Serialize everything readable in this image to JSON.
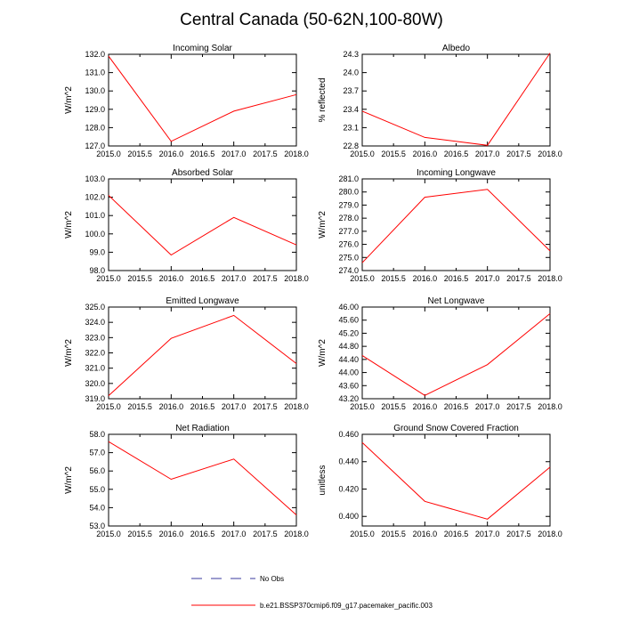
{
  "figure": {
    "title": "Central Canada (50-62N,100-80W)",
    "legend": [
      {
        "label": "No Obs",
        "style": "dashed",
        "color": "#3a3a9e"
      },
      {
        "label": "b.e21.BSSP370cmip6.f09_g17.pacemaker_pacific.003",
        "style": "solid",
        "color": "#ff0000"
      }
    ]
  },
  "chart_data": [
    {
      "id": "incoming-solar",
      "type": "line",
      "title": "Incoming Solar",
      "xlabel": "",
      "ylabel": "W/m^2",
      "x": [
        2015,
        2016,
        2017,
        2018
      ],
      "xlim": [
        2015,
        2018
      ],
      "xticks": [
        "2015.0",
        "2015.5",
        "2016.0",
        "2016.5",
        "2017.0",
        "2017.5",
        "2018.0"
      ],
      "ylim": [
        127.0,
        132.0
      ],
      "yticks": [
        "127.0",
        "128.0",
        "129.0",
        "130.0",
        "131.0",
        "132.0"
      ],
      "series": [
        {
          "name": "b.e21.BSSP370cmip6.f09_g17.pacemaker_pacific.003",
          "color": "#ff0000",
          "values": [
            131.9,
            127.25,
            128.9,
            129.8
          ]
        }
      ]
    },
    {
      "id": "albedo",
      "type": "line",
      "title": "Albedo",
      "xlabel": "",
      "ylabel": "% reflected",
      "x": [
        2015,
        2016,
        2017,
        2018
      ],
      "xlim": [
        2015,
        2018
      ],
      "xticks": [
        "2015.0",
        "2015.5",
        "2016.0",
        "2016.5",
        "2017.0",
        "2017.5",
        "2018.0"
      ],
      "ylim": [
        22.8,
        24.3
      ],
      "yticks": [
        "22.8",
        "23.1",
        "23.4",
        "23.7",
        "24.0",
        "24.3"
      ],
      "series": [
        {
          "name": "b.e21.BSSP370cmip6.f09_g17.pacemaker_pacific.003",
          "color": "#ff0000",
          "values": [
            23.37,
            22.94,
            22.81,
            24.32
          ]
        }
      ]
    },
    {
      "id": "absorbed-solar",
      "type": "line",
      "title": "Absorbed Solar",
      "xlabel": "",
      "ylabel": "W/m^2",
      "x": [
        2015,
        2016,
        2017,
        2018
      ],
      "xlim": [
        2015,
        2018
      ],
      "xticks": [
        "2015.0",
        "2015.5",
        "2016.0",
        "2016.5",
        "2017.0",
        "2017.5",
        "2018.0"
      ],
      "ylim": [
        98.0,
        103.0
      ],
      "yticks": [
        "98.0",
        "99.0",
        "100.0",
        "101.0",
        "102.0",
        "103.0"
      ],
      "series": [
        {
          "name": "b.e21.BSSP370cmip6.f09_g17.pacemaker_pacific.003",
          "color": "#ff0000",
          "values": [
            102.1,
            98.85,
            100.9,
            99.4
          ]
        }
      ]
    },
    {
      "id": "incoming-longwave",
      "type": "line",
      "title": "Incoming Longwave",
      "xlabel": "",
      "ylabel": "W/m^2",
      "x": [
        2015,
        2016,
        2017,
        2018
      ],
      "xlim": [
        2015,
        2018
      ],
      "xticks": [
        "2015.0",
        "2015.5",
        "2016.0",
        "2016.5",
        "2017.0",
        "2017.5",
        "2018.0"
      ],
      "ylim": [
        274.0,
        281.0
      ],
      "yticks": [
        "274.0",
        "275.0",
        "276.0",
        "277.0",
        "278.0",
        "279.0",
        "280.0",
        "281.0"
      ],
      "series": [
        {
          "name": "b.e21.BSSP370cmip6.f09_g17.pacemaker_pacific.003",
          "color": "#ff0000",
          "values": [
            274.6,
            279.6,
            280.2,
            275.5
          ]
        }
      ]
    },
    {
      "id": "emitted-longwave",
      "type": "line",
      "title": "Emitted Longwave",
      "xlabel": "",
      "ylabel": "W/m^2",
      "x": [
        2015,
        2016,
        2017,
        2018
      ],
      "xlim": [
        2015,
        2018
      ],
      "xticks": [
        "2015.0",
        "2015.5",
        "2016.0",
        "2016.5",
        "2017.0",
        "2017.5",
        "2018.0"
      ],
      "ylim": [
        319.0,
        325.0
      ],
      "yticks": [
        "319.0",
        "320.0",
        "321.0",
        "322.0",
        "323.0",
        "324.0",
        "325.0"
      ],
      "series": [
        {
          "name": "b.e21.BSSP370cmip6.f09_g17.pacemaker_pacific.003",
          "color": "#ff0000",
          "values": [
            319.2,
            322.95,
            324.45,
            321.3
          ]
        }
      ]
    },
    {
      "id": "net-longwave",
      "type": "line",
      "title": "Net Longwave",
      "xlabel": "",
      "ylabel": "W/m^2",
      "x": [
        2015,
        2016,
        2017,
        2018
      ],
      "xlim": [
        2015,
        2018
      ],
      "xticks": [
        "2015.0",
        "2015.5",
        "2016.0",
        "2016.5",
        "2017.0",
        "2017.5",
        "2018.0"
      ],
      "ylim": [
        43.2,
        46.0
      ],
      "yticks": [
        "43.20",
        "43.60",
        "44.00",
        "44.40",
        "44.80",
        "45.20",
        "45.60",
        "46.00"
      ],
      "series": [
        {
          "name": "b.e21.BSSP370cmip6.f09_g17.pacemaker_pacific.003",
          "color": "#ff0000",
          "values": [
            44.52,
            43.3,
            44.24,
            45.8
          ]
        }
      ]
    },
    {
      "id": "net-radiation",
      "type": "line",
      "title": "Net Radiation",
      "xlabel": "",
      "ylabel": "W/m^2",
      "x": [
        2015,
        2016,
        2017,
        2018
      ],
      "xlim": [
        2015,
        2018
      ],
      "xticks": [
        "2015.0",
        "2015.5",
        "2016.0",
        "2016.5",
        "2017.0",
        "2017.5",
        "2018.0"
      ],
      "ylim": [
        53.0,
        58.0
      ],
      "yticks": [
        "53.0",
        "54.0",
        "55.0",
        "56.0",
        "57.0",
        "58.0"
      ],
      "series": [
        {
          "name": "b.e21.BSSP370cmip6.f09_g17.pacemaker_pacific.003",
          "color": "#ff0000",
          "values": [
            57.6,
            55.55,
            56.65,
            53.6
          ]
        }
      ]
    },
    {
      "id": "ground-snow-covered-fraction",
      "type": "line",
      "title": "Ground Snow Covered Fraction",
      "xlabel": "",
      "ylabel": "unitless",
      "x": [
        2015,
        2016,
        2017,
        2018
      ],
      "xlim": [
        2015,
        2018
      ],
      "xticks": [
        "2015.0",
        "2015.5",
        "2016.0",
        "2016.5",
        "2017.0",
        "2017.5",
        "2018.0"
      ],
      "ylim": [
        0.393,
        0.46
      ],
      "yticks": [
        "0.400",
        "0.420",
        "0.440",
        "0.460"
      ],
      "series": [
        {
          "name": "b.e21.BSSP370cmip6.f09_g17.pacemaker_pacific.003",
          "color": "#ff0000",
          "values": [
            0.454,
            0.411,
            0.398,
            0.436
          ]
        }
      ]
    }
  ]
}
